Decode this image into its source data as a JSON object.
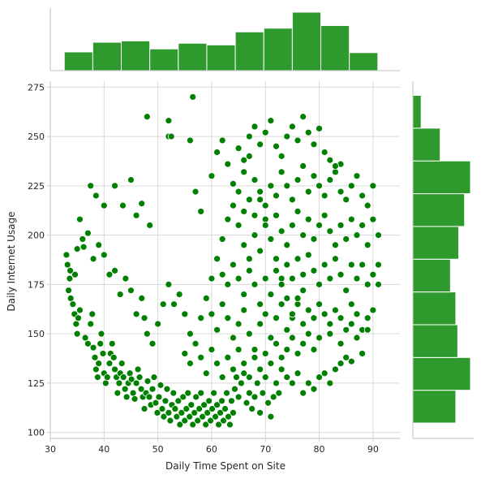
{
  "chart_data": {
    "type": "scatter",
    "subtype": "jointplot-with-marginal-histograms",
    "xlabel": "Daily Time Spent on Site",
    "ylabel": "Daily Internet Usage",
    "xlim": [
      30,
      95
    ],
    "ylim": [
      97,
      278
    ],
    "xticks": [
      30,
      40,
      50,
      60,
      70,
      80,
      90
    ],
    "yticks": [
      100,
      125,
      150,
      175,
      200,
      225,
      250,
      275
    ],
    "grid": true,
    "colors": {
      "points": "#008000",
      "point_edge": "#ffffff",
      "bars": "#2e9a2e",
      "bar_edge": "#ffffff",
      "grid": "#d9d9d9",
      "spine": "#cccccc"
    },
    "marginal_x": {
      "bin_edges": [
        32.6,
        37.9,
        43.2,
        48.5,
        53.8,
        59.1,
        64.4,
        69.7,
        75.0,
        80.3,
        85.6,
        90.9
      ],
      "counts": [
        56,
        85,
        89,
        65,
        82,
        77,
        116,
        127,
        175,
        135,
        54
      ]
    },
    "marginal_y": {
      "bin_edges": [
        104.8,
        121.4,
        138.0,
        154.6,
        171.2,
        187.8,
        204.4,
        221.0,
        237.6,
        254.2,
        270.8
      ],
      "counts": [
        88,
        118,
        92,
        88,
        77,
        94,
        106,
        118,
        56,
        17
      ]
    },
    "points": [
      [
        33.0,
        190
      ],
      [
        33.2,
        185
      ],
      [
        33.6,
        178
      ],
      [
        33.8,
        168
      ],
      [
        34.2,
        165
      ],
      [
        34.5,
        160
      ],
      [
        34.8,
        155
      ],
      [
        35.0,
        150
      ],
      [
        35.2,
        158
      ],
      [
        35.5,
        162
      ],
      [
        35.0,
        193
      ],
      [
        35.5,
        208
      ],
      [
        36.0,
        198
      ],
      [
        34.6,
        180
      ],
      [
        33.4,
        172
      ],
      [
        33.7,
        182
      ],
      [
        36.2,
        194
      ],
      [
        37.0,
        201
      ],
      [
        36.5,
        148
      ],
      [
        37.0,
        145
      ],
      [
        37.5,
        155
      ],
      [
        37.8,
        160
      ],
      [
        38.0,
        143
      ],
      [
        38.3,
        138
      ],
      [
        38.5,
        132
      ],
      [
        38.8,
        128
      ],
      [
        39.0,
        135
      ],
      [
        39.3,
        145
      ],
      [
        39.5,
        150
      ],
      [
        39.8,
        140
      ],
      [
        40.0,
        130
      ],
      [
        40.3,
        125
      ],
      [
        40.6,
        128
      ],
      [
        41.0,
        135
      ],
      [
        41.2,
        140
      ],
      [
        41.5,
        145
      ],
      [
        41.8,
        138
      ],
      [
        42.0,
        132
      ],
      [
        42.3,
        128
      ],
      [
        42.5,
        120
      ],
      [
        42.8,
        125
      ],
      [
        43.0,
        130
      ],
      [
        43.3,
        135
      ],
      [
        43.6,
        128
      ],
      [
        43.9,
        122
      ],
      [
        44.2,
        118
      ],
      [
        44.5,
        125
      ],
      [
        44.8,
        130
      ],
      [
        45.1,
        127
      ],
      [
        45.4,
        120
      ],
      [
        45.7,
        117
      ],
      [
        46.0,
        125
      ],
      [
        46.3,
        132
      ],
      [
        46.6,
        128
      ],
      [
        46.9,
        122
      ],
      [
        47.2,
        118
      ],
      [
        47.5,
        112
      ],
      [
        47.8,
        120
      ],
      [
        48.1,
        126
      ],
      [
        48.4,
        118
      ],
      [
        48.7,
        114
      ],
      [
        49.0,
        122
      ],
      [
        49.3,
        128
      ],
      [
        49.6,
        115
      ],
      [
        49.9,
        110
      ],
      [
        50.2,
        118
      ],
      [
        50.5,
        124
      ],
      [
        50.8,
        112
      ],
      [
        51.1,
        108
      ],
      [
        51.4,
        116
      ],
      [
        51.7,
        122
      ],
      [
        52.0,
        110
      ],
      [
        52.3,
        106
      ],
      [
        52.6,
        114
      ],
      [
        52.9,
        120
      ],
      [
        53.2,
        112
      ],
      [
        53.5,
        108
      ],
      [
        53.8,
        116
      ],
      [
        54.1,
        104
      ],
      [
        54.4,
        110
      ],
      [
        54.7,
        118
      ],
      [
        55.0,
        106
      ],
      [
        55.3,
        112
      ],
      [
        55.6,
        120
      ],
      [
        55.9,
        108
      ],
      [
        56.2,
        114
      ],
      [
        56.5,
        104
      ],
      [
        56.8,
        110
      ],
      [
        57.1,
        118
      ],
      [
        57.4,
        106
      ],
      [
        57.7,
        112
      ],
      [
        58.0,
        120
      ],
      [
        58.3,
        108
      ],
      [
        58.6,
        114
      ],
      [
        58.9,
        104
      ],
      [
        59.2,
        110
      ],
      [
        59.5,
        116
      ],
      [
        59.8,
        106
      ],
      [
        60.1,
        112
      ],
      [
        60.4,
        120
      ],
      [
        60.7,
        108
      ],
      [
        61.0,
        114
      ],
      [
        61.3,
        104
      ],
      [
        61.6,
        110
      ],
      [
        61.9,
        116
      ],
      [
        62.2,
        106
      ],
      [
        62.5,
        112
      ],
      [
        62.8,
        120
      ],
      [
        63.1,
        108
      ],
      [
        63.4,
        104
      ],
      [
        63.7,
        116
      ],
      [
        64.0,
        110
      ],
      [
        64.3,
        122
      ],
      [
        64.6,
        128
      ],
      [
        65.0,
        118
      ],
      [
        65.5,
        125
      ],
      [
        66.0,
        130
      ],
      [
        66.5,
        115
      ],
      [
        67.0,
        120
      ],
      [
        67.5,
        112
      ],
      [
        68.0,
        118
      ],
      [
        68.5,
        125
      ],
      [
        69.0,
        110
      ],
      [
        69.5,
        120
      ],
      [
        70.0,
        128
      ],
      [
        70.5,
        115
      ],
      [
        71.0,
        108
      ],
      [
        71.5,
        118
      ],
      [
        72.0,
        125
      ],
      [
        72.5,
        120
      ],
      [
        73.0,
        132
      ],
      [
        74.0,
        128
      ],
      [
        75.0,
        125
      ],
      [
        76.0,
        130
      ],
      [
        77.0,
        120
      ],
      [
        78.0,
        125
      ],
      [
        79.0,
        122
      ],
      [
        80.0,
        128
      ],
      [
        81.0,
        130
      ],
      [
        82.0,
        125
      ],
      [
        83.0,
        132
      ],
      [
        84.0,
        135
      ],
      [
        85.0,
        138
      ],
      [
        86.0,
        136
      ],
      [
        88.0,
        140
      ],
      [
        37.5,
        225
      ],
      [
        38.5,
        220
      ],
      [
        40.0,
        215
      ],
      [
        39.0,
        195
      ],
      [
        42.0,
        225
      ],
      [
        43.5,
        215
      ],
      [
        45.0,
        228
      ],
      [
        46.0,
        210
      ],
      [
        47.0,
        216
      ],
      [
        48.5,
        205
      ],
      [
        48.0,
        260
      ],
      [
        52.0,
        258
      ],
      [
        52.0,
        250
      ],
      [
        52.5,
        250
      ],
      [
        56.5,
        270
      ],
      [
        56.0,
        248
      ],
      [
        57.0,
        222
      ],
      [
        58.0,
        212
      ],
      [
        38.0,
        188
      ],
      [
        40.0,
        190
      ],
      [
        41.0,
        180
      ],
      [
        42.0,
        182
      ],
      [
        43.0,
        170
      ],
      [
        44.0,
        178
      ],
      [
        45.0,
        172
      ],
      [
        46.0,
        160
      ],
      [
        47.0,
        168
      ],
      [
        47.5,
        158
      ],
      [
        48.0,
        150
      ],
      [
        49.0,
        145
      ],
      [
        50.0,
        155
      ],
      [
        51.0,
        165
      ],
      [
        52.0,
        175
      ],
      [
        53.0,
        165
      ],
      [
        54.0,
        170
      ],
      [
        55.0,
        160
      ],
      [
        56.0,
        150
      ],
      [
        57.0,
        145
      ],
      [
        58.0,
        158
      ],
      [
        59.0,
        168
      ],
      [
        60.0,
        178
      ],
      [
        61.0,
        188
      ],
      [
        62.0,
        198
      ],
      [
        63.0,
        208
      ],
      [
        64.0,
        215
      ],
      [
        65.0,
        222
      ],
      [
        66.0,
        232
      ],
      [
        67.0,
        240
      ],
      [
        68.0,
        228
      ],
      [
        69.0,
        218
      ],
      [
        70.0,
        208
      ],
      [
        71.0,
        198
      ],
      [
        72.0,
        188
      ],
      [
        73.0,
        178
      ],
      [
        74.0,
        168
      ],
      [
        75.0,
        158
      ],
      [
        76.0,
        165
      ],
      [
        77.0,
        172
      ],
      [
        60.0,
        230
      ],
      [
        61.0,
        242
      ],
      [
        62.0,
        248
      ],
      [
        63.0,
        236
      ],
      [
        64.0,
        226
      ],
      [
        65.0,
        244
      ],
      [
        66.0,
        238
      ],
      [
        67.0,
        250
      ],
      [
        68.0,
        255
      ],
      [
        69.0,
        246
      ],
      [
        70.0,
        252
      ],
      [
        71.0,
        258
      ],
      [
        72.0,
        245
      ],
      [
        73.0,
        240
      ],
      [
        74.0,
        250
      ],
      [
        75.0,
        255
      ],
      [
        76.0,
        248
      ],
      [
        77.0,
        260
      ],
      [
        78.0,
        252
      ],
      [
        79.0,
        246
      ],
      [
        80.0,
        254
      ],
      [
        81.0,
        242
      ],
      [
        82.0,
        238
      ],
      [
        83.0,
        232
      ],
      [
        84.0,
        236
      ],
      [
        65.0,
        205
      ],
      [
        66.0,
        212
      ],
      [
        67.0,
        218
      ],
      [
        68.0,
        210
      ],
      [
        69.0,
        222
      ],
      [
        70.0,
        215
      ],
      [
        71.0,
        225
      ],
      [
        72.0,
        220
      ],
      [
        73.0,
        232
      ],
      [
        74.0,
        225
      ],
      [
        75.0,
        218
      ],
      [
        76.0,
        228
      ],
      [
        77.0,
        235
      ],
      [
        78.0,
        222
      ],
      [
        79.0,
        230
      ],
      [
        80.0,
        225
      ],
      [
        81.0,
        220
      ],
      [
        82.0,
        228
      ],
      [
        83.0,
        235
      ],
      [
        84.0,
        222
      ],
      [
        85.0,
        218
      ],
      [
        86.0,
        225
      ],
      [
        87.0,
        230
      ],
      [
        88.0,
        220
      ],
      [
        89.0,
        215
      ],
      [
        90.0,
        225
      ],
      [
        66.0,
        195
      ],
      [
        67.0,
        188
      ],
      [
        68.0,
        200
      ],
      [
        69.0,
        192
      ],
      [
        70.0,
        205
      ],
      [
        71.0,
        198
      ],
      [
        72.0,
        210
      ],
      [
        73.0,
        202
      ],
      [
        74.0,
        195
      ],
      [
        75.0,
        205
      ],
      [
        76.0,
        212
      ],
      [
        77.0,
        200
      ],
      [
        78.0,
        208
      ],
      [
        79.0,
        198
      ],
      [
        80.0,
        205
      ],
      [
        81.0,
        210
      ],
      [
        82.0,
        202
      ],
      [
        83.0,
        195
      ],
      [
        84.0,
        205
      ],
      [
        85.0,
        198
      ],
      [
        86.0,
        208
      ],
      [
        87.0,
        200
      ],
      [
        88.0,
        205
      ],
      [
        89.0,
        195
      ],
      [
        90.0,
        208
      ],
      [
        91.0,
        200
      ],
      [
        62.0,
        180
      ],
      [
        63.0,
        175
      ],
      [
        64.0,
        185
      ],
      [
        65.0,
        178
      ],
      [
        66.0,
        170
      ],
      [
        67.0,
        182
      ],
      [
        68.0,
        175
      ],
      [
        69.0,
        165
      ],
      [
        70.0,
        178
      ],
      [
        71.0,
        170
      ],
      [
        72.0,
        182
      ],
      [
        73.0,
        175
      ],
      [
        74.0,
        185
      ],
      [
        75.0,
        178
      ],
      [
        76.0,
        188
      ],
      [
        77.0,
        180
      ],
      [
        78.0,
        190
      ],
      [
        79.0,
        182
      ],
      [
        80.0,
        175
      ],
      [
        81.0,
        185
      ],
      [
        82.0,
        178
      ],
      [
        83.0,
        188
      ],
      [
        84.0,
        180
      ],
      [
        85.0,
        172
      ],
      [
        86.0,
        185
      ],
      [
        87.0,
        178
      ],
      [
        88.0,
        185
      ],
      [
        89.0,
        175
      ],
      [
        90.0,
        180
      ],
      [
        91.0,
        185
      ],
      [
        60.0,
        160
      ],
      [
        61.0,
        152
      ],
      [
        62.0,
        165
      ],
      [
        63.0,
        158
      ],
      [
        64.0,
        148
      ],
      [
        65.0,
        155
      ],
      [
        66.0,
        162
      ],
      [
        67.0,
        150
      ],
      [
        68.0,
        142
      ],
      [
        69.0,
        155
      ],
      [
        70.0,
        160
      ],
      [
        71.0,
        148
      ],
      [
        72.0,
        158
      ],
      [
        73.0,
        165
      ],
      [
        74.0,
        152
      ],
      [
        75.0,
        160
      ],
      [
        76.0,
        168
      ],
      [
        77.0,
        155
      ],
      [
        78.0,
        162
      ],
      [
        79.0,
        158
      ],
      [
        80.0,
        165
      ],
      [
        81.0,
        160
      ],
      [
        82.0,
        155
      ],
      [
        83.0,
        162
      ],
      [
        84.0,
        158
      ],
      [
        85.0,
        152
      ],
      [
        86.0,
        165
      ],
      [
        87.0,
        160
      ],
      [
        88.0,
        152
      ],
      [
        89.0,
        158
      ],
      [
        90.0,
        162
      ],
      [
        55.0,
        140
      ],
      [
        56.0,
        135
      ],
      [
        57.0,
        145
      ],
      [
        58.0,
        138
      ],
      [
        59.0,
        130
      ],
      [
        60.0,
        142
      ],
      [
        61.0,
        135
      ],
      [
        62.0,
        128
      ],
      [
        63.0,
        138
      ],
      [
        64.0,
        132
      ],
      [
        65.0,
        142
      ],
      [
        66.0,
        135
      ],
      [
        67.0,
        128
      ],
      [
        68.0,
        138
      ],
      [
        69.0,
        132
      ],
      [
        70.0,
        140
      ],
      [
        71.0,
        135
      ],
      [
        72.0,
        145
      ],
      [
        73.0,
        138
      ],
      [
        74.0,
        142
      ],
      [
        75.0,
        148
      ],
      [
        76.0,
        140
      ],
      [
        77.0,
        145
      ],
      [
        78.0,
        150
      ],
      [
        79.0,
        142
      ],
      [
        80.0,
        148
      ],
      [
        82.0,
        150
      ],
      [
        84.0,
        145
      ],
      [
        86.0,
        155
      ],
      [
        87.0,
        148
      ],
      [
        89.0,
        152
      ],
      [
        91.0,
        175
      ]
    ]
  }
}
